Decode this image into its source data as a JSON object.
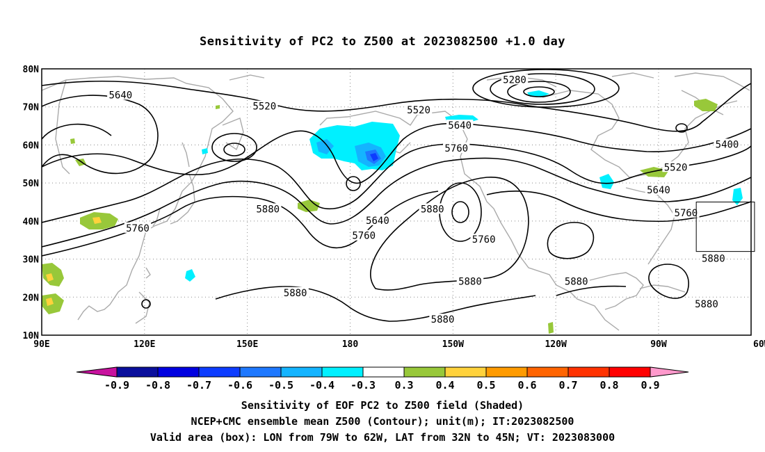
{
  "title": "Sensitivity of PC2 to Z500 at 2023082500 +1.0 day",
  "map": {
    "lon_range": [
      90,
      297
    ],
    "lat_range": [
      10,
      80
    ],
    "x_ticks": [
      {
        "lon": 90,
        "label": "90E"
      },
      {
        "lon": 120,
        "label": "120E"
      },
      {
        "lon": 150,
        "label": "150E"
      },
      {
        "lon": 180,
        "label": "180"
      },
      {
        "lon": 210,
        "label": "150W"
      },
      {
        "lon": 240,
        "label": "120W"
      },
      {
        "lon": 270,
        "label": "90W"
      },
      {
        "lon": 300,
        "label": "60W"
      }
    ],
    "y_ticks": [
      {
        "lat": 80,
        "label": "80N"
      },
      {
        "lat": 70,
        "label": "70N"
      },
      {
        "lat": 60,
        "label": "60N"
      },
      {
        "lat": 50,
        "label": "50N"
      },
      {
        "lat": 40,
        "label": "40N"
      },
      {
        "lat": 30,
        "label": "30N"
      },
      {
        "lat": 20,
        "label": "20N"
      },
      {
        "lat": 10,
        "label": "10N"
      }
    ],
    "contour_labels": [
      {
        "text": "5280",
        "lon": 228,
        "lat": 77
      },
      {
        "text": "5640",
        "lon": 113,
        "lat": 73
      },
      {
        "text": "5520",
        "lon": 155,
        "lat": 70
      },
      {
        "text": "5520",
        "lon": 200,
        "lat": 69
      },
      {
        "text": "5640",
        "lon": 212,
        "lat": 65
      },
      {
        "text": "5760",
        "lon": 211,
        "lat": 59
      },
      {
        "text": "5400",
        "lon": 290,
        "lat": 60
      },
      {
        "text": "5520",
        "lon": 275,
        "lat": 54
      },
      {
        "text": "5640",
        "lon": 270,
        "lat": 48
      },
      {
        "text": "5760",
        "lon": 278,
        "lat": 42
      },
      {
        "text": "5880",
        "lon": 156,
        "lat": 43
      },
      {
        "text": "5640",
        "lon": 188,
        "lat": 40
      },
      {
        "text": "5760",
        "lon": 118,
        "lat": 38
      },
      {
        "text": "5760",
        "lon": 184,
        "lat": 36
      },
      {
        "text": "5880",
        "lon": 204,
        "lat": 43
      },
      {
        "text": "5760",
        "lon": 219,
        "lat": 35
      },
      {
        "text": "5880",
        "lon": 286,
        "lat": 30
      },
      {
        "text": "5880",
        "lon": 246,
        "lat": 24
      },
      {
        "text": "5880",
        "lon": 215,
        "lat": 24
      },
      {
        "text": "5880",
        "lon": 164,
        "lat": 21
      },
      {
        "text": "5880",
        "lon": 284,
        "lat": 18
      },
      {
        "text": "5880",
        "lon": 207,
        "lat": 14
      }
    ],
    "valid_box": {
      "lon_w": 281,
      "lon_e": 298,
      "lat_s": 32,
      "lat_n": 45
    }
  },
  "colorbar": {
    "labels": [
      "-0.9",
      "-0.8",
      "-0.7",
      "-0.6",
      "-0.5",
      "-0.4",
      "-0.3",
      "0.3",
      "0.4",
      "0.5",
      "0.6",
      "0.7",
      "0.8",
      "0.9"
    ],
    "colors": [
      "#0a0f9c",
      "#0000e0",
      "#0d3cff",
      "#1e78ff",
      "#14b4ff",
      "#00f0ff",
      "#ffffff",
      "#98c83a",
      "#ffd23c",
      "#ff9b00",
      "#ff6400",
      "#ff3200",
      "#ff0000"
    ],
    "low_arrow_color": "#c8129e",
    "high_arrow_color": "#ff99cc"
  },
  "footer": {
    "line1": "Sensitivity of EOF PC2 to Z500 field (Shaded)",
    "line2": "NCEP+CMC ensemble mean Z500 (Contour); unit(m); IT:2023082500",
    "line3": "Valid area (box): LON from 79W to 62W, LAT from 32N to 45N; VT: 2023083000"
  }
}
